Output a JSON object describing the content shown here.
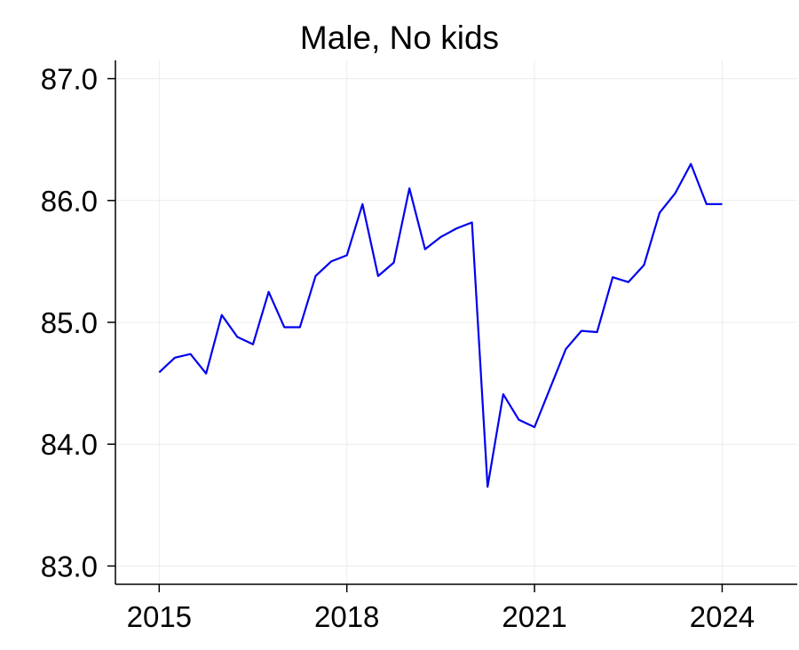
{
  "chart_data": {
    "type": "line",
    "title": "Male, No kids",
    "xlabel": "",
    "ylabel": "",
    "xlim": [
      2014.3,
      2025.2
    ],
    "ylim": [
      82.85,
      87.15
    ],
    "x_ticks": [
      {
        "value": 2015,
        "label": "2015"
      },
      {
        "value": 2018,
        "label": "2018"
      },
      {
        "value": 2021,
        "label": "2021"
      },
      {
        "value": 2024,
        "label": "2024"
      }
    ],
    "y_ticks": [
      {
        "value": 83,
        "label": "83.0"
      },
      {
        "value": 84,
        "label": "84.0"
      },
      {
        "value": 85,
        "label": "85.0"
      },
      {
        "value": 86,
        "label": "86.0"
      },
      {
        "value": 87,
        "label": "87.0"
      }
    ],
    "grid": true,
    "color": "#0000ee",
    "series": [
      {
        "x": [
          2015.0,
          2015.25,
          2015.5,
          2015.75,
          2016.0,
          2016.25,
          2016.5,
          2016.75,
          2017.0,
          2017.25,
          2017.5,
          2017.75,
          2018.0,
          2018.25,
          2018.5,
          2018.75,
          2019.0,
          2019.25,
          2019.5,
          2019.75,
          2020.0,
          2020.25,
          2020.5,
          2020.75,
          2021.0,
          2021.25,
          2021.5,
          2021.75,
          2022.0,
          2022.25,
          2022.5,
          2022.75,
          2023.0,
          2023.25,
          2023.5,
          2023.75,
          2024.0
        ],
        "values": [
          84.59,
          84.71,
          84.74,
          84.58,
          85.06,
          84.88,
          84.82,
          85.25,
          84.96,
          84.96,
          85.38,
          85.5,
          85.55,
          85.97,
          85.38,
          85.49,
          86.1,
          85.6,
          85.7,
          85.77,
          85.82,
          83.65,
          84.41,
          84.2,
          84.14,
          84.46,
          84.78,
          84.93,
          84.92,
          85.37,
          85.33,
          85.47,
          85.9,
          86.06,
          86.3,
          85.97,
          85.97
        ]
      }
    ]
  }
}
